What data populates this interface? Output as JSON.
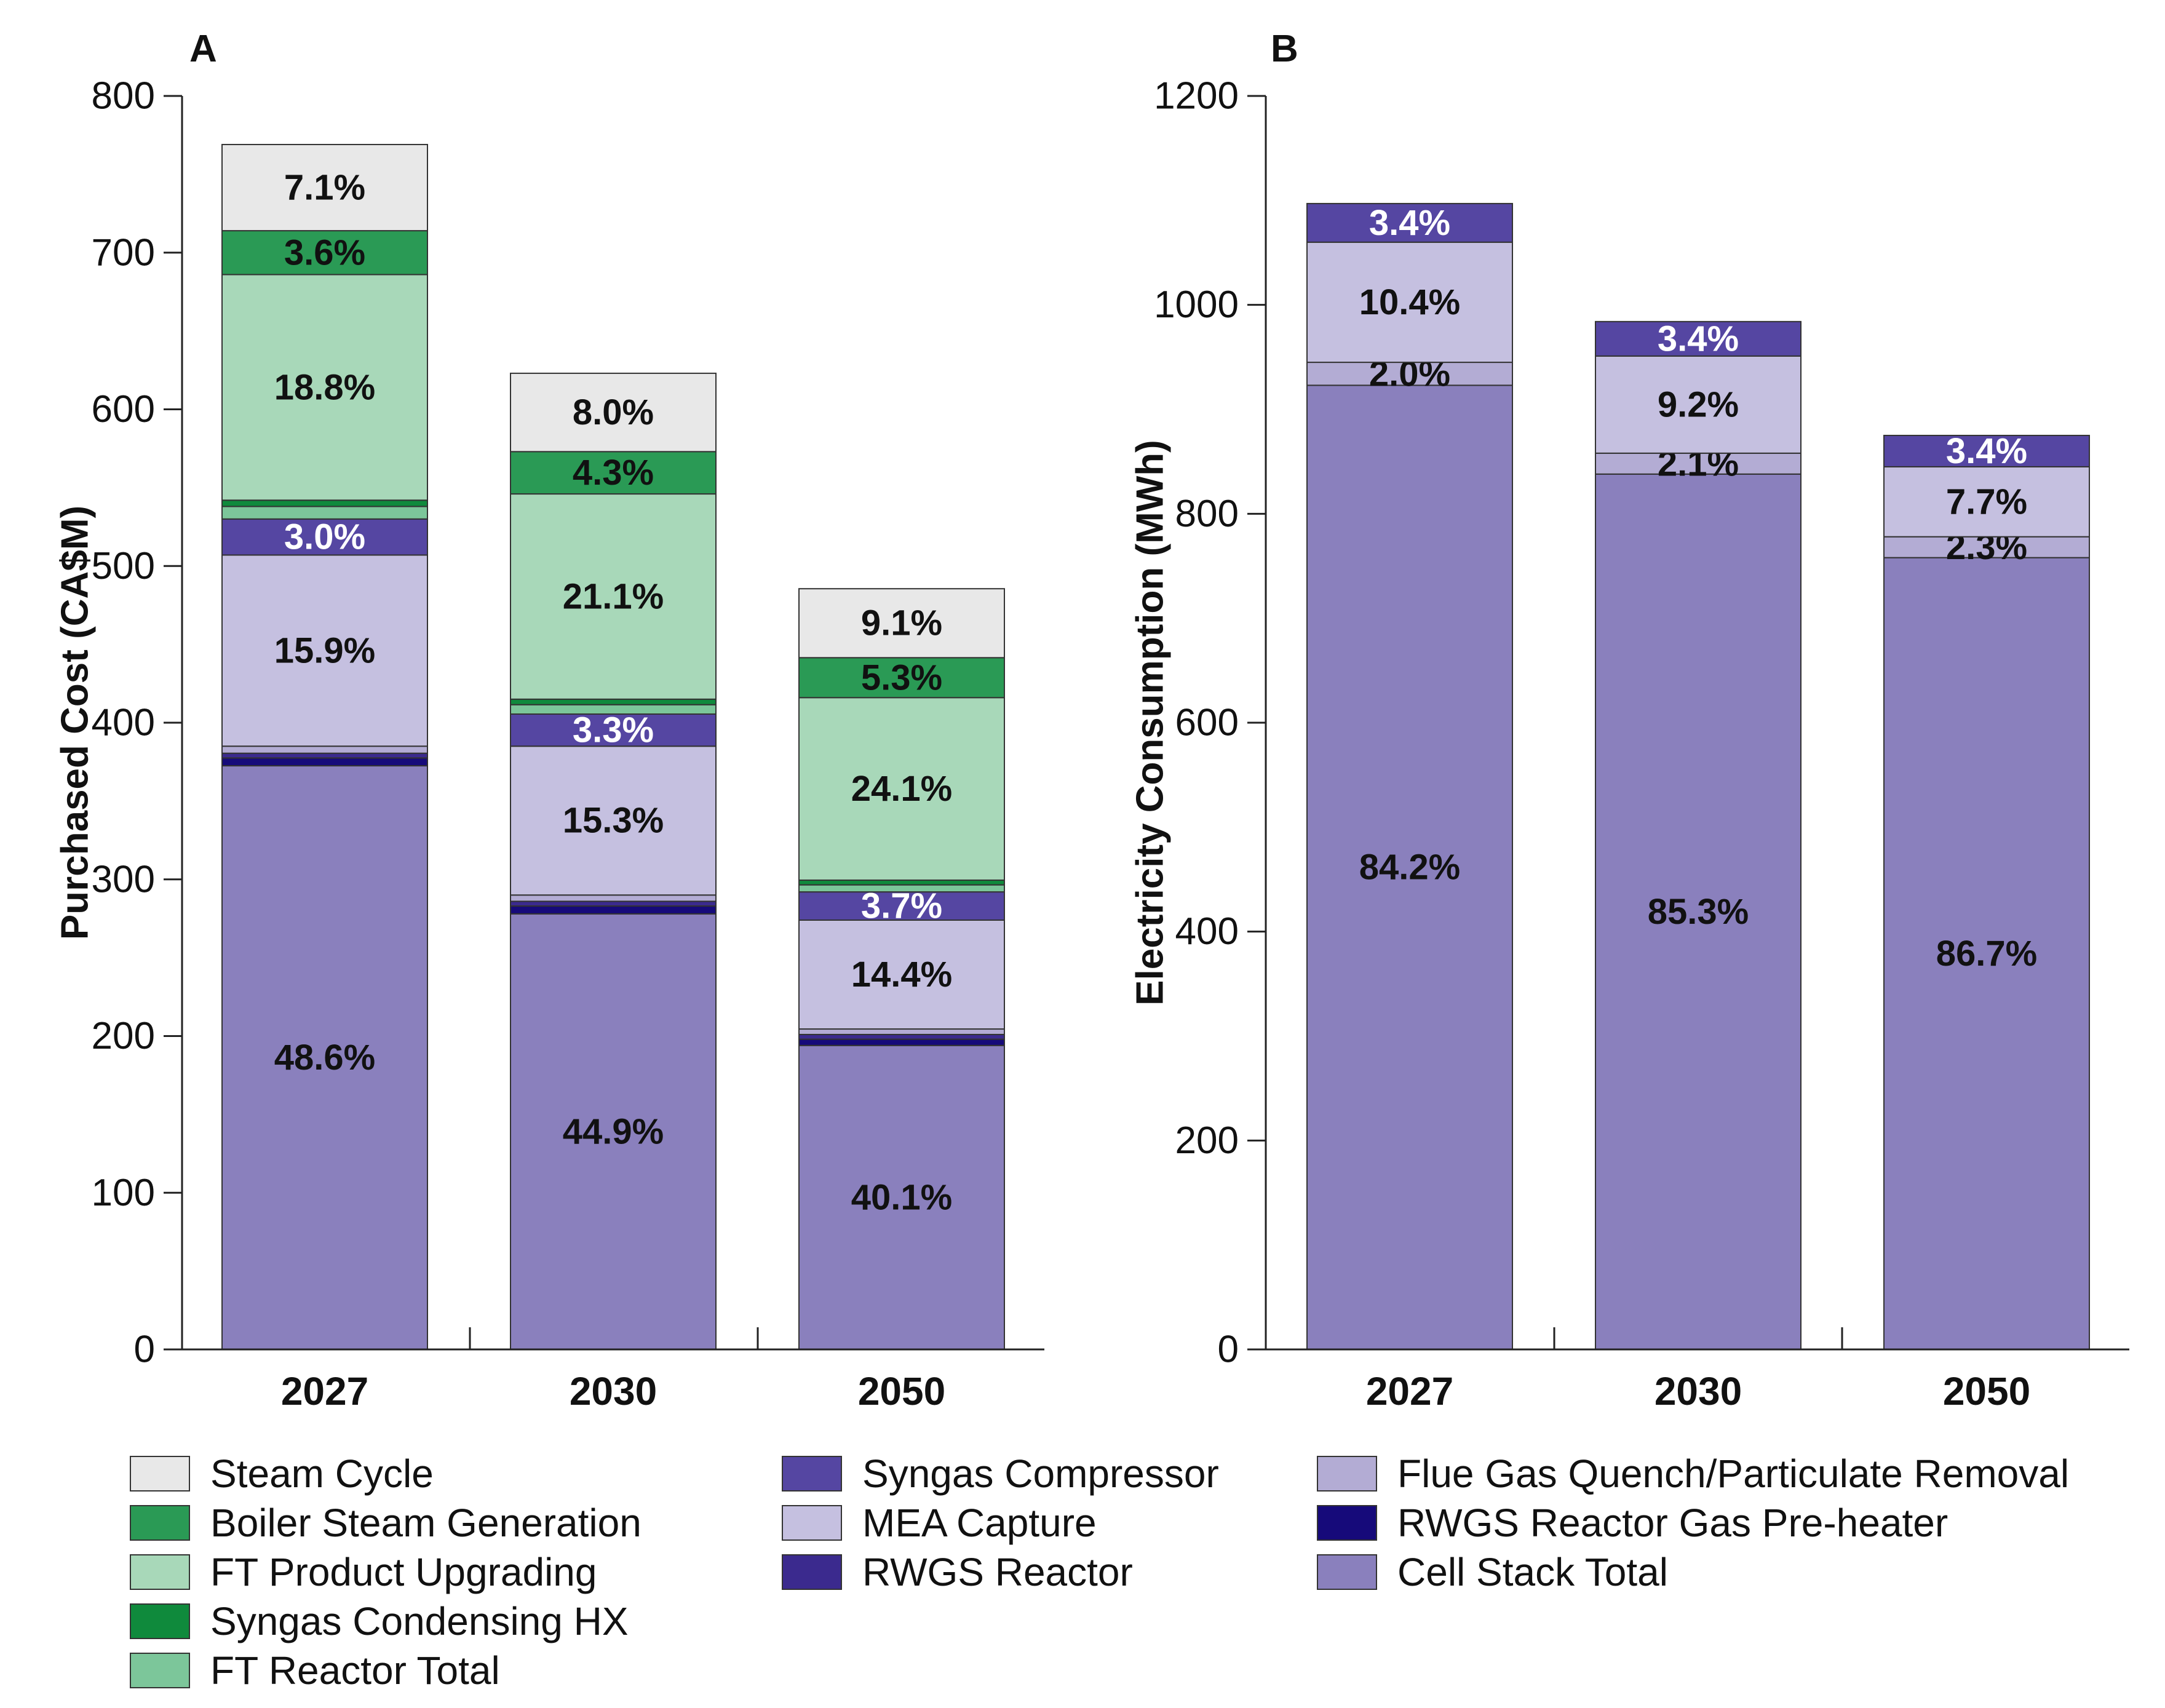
{
  "figure": {
    "panels": [
      "A",
      "B"
    ]
  },
  "legend": [
    {
      "key": "steam_cycle",
      "label": "Steam Cycle",
      "color": "#e8e8e8"
    },
    {
      "key": "boiler_steam_generation",
      "label": "Boiler Steam Generation",
      "color": "#2a9a55"
    },
    {
      "key": "ft_product_upgrading",
      "label": "FT Product Upgrading",
      "color": "#a8d8b9"
    },
    {
      "key": "syngas_condensing_hx",
      "label": "Syngas Condensing HX",
      "color": "#0f8a3c"
    },
    {
      "key": "ft_reactor_total",
      "label": "FT Reactor Total",
      "color": "#7cc69a"
    },
    {
      "key": "syngas_compressor",
      "label": "Syngas Compressor",
      "color": "#5546a2"
    },
    {
      "key": "mea_capture",
      "label": "MEA Capture",
      "color": "#c5c0e0"
    },
    {
      "key": "rwgs_reactor",
      "label": "RWGS Reactor",
      "color": "#3b2a8e"
    },
    {
      "key": "flue_gas_quench",
      "label": "Flue Gas Quench/Particulate Removal",
      "color": "#b3acd4"
    },
    {
      "key": "rwgs_preheater",
      "label": "RWGS Reactor Gas Pre-heater",
      "color": "#160a7a"
    },
    {
      "key": "cell_stack_total",
      "label": "Cell Stack Total",
      "color": "#8a80bd"
    }
  ],
  "chart_data": [
    {
      "panel": "A",
      "type": "bar",
      "stacked": true,
      "ylabel": "Purchased Cost (CA$M)",
      "ylim": [
        0,
        800
      ],
      "yticks": [
        "0",
        "100",
        "200",
        "300",
        "400",
        "500",
        "600",
        "700",
        "800"
      ],
      "categories": [
        "2027",
        "2030",
        "2050"
      ],
      "series": [
        {
          "key": "cell_stack_total",
          "values": [
            372.5,
            278,
            194
          ],
          "labels": [
            "48.6%",
            "44.9%",
            "40.1%"
          ],
          "label_color": "#111111"
        },
        {
          "key": "rwgs_preheater",
          "values": [
            5,
            5,
            4
          ],
          "labels": [
            "",
            "",
            ""
          ]
        },
        {
          "key": "rwgs_reactor",
          "values": [
            3,
            3,
            3
          ],
          "labels": [
            "",
            "",
            ""
          ]
        },
        {
          "key": "flue_gas_quench",
          "values": [
            4.5,
            4,
            3.5
          ],
          "labels": [
            "",
            "",
            ""
          ]
        },
        {
          "key": "mea_capture",
          "values": [
            122,
            95,
            69.5
          ],
          "labels": [
            "15.9%",
            "15.3%",
            "14.4%"
          ],
          "label_color": "#111111"
        },
        {
          "key": "syngas_compressor",
          "values": [
            23,
            20.5,
            18
          ],
          "labels": [
            "3.0%",
            "3.3%",
            "3.7%"
          ],
          "label_color": "#ffffff"
        },
        {
          "key": "ft_reactor_total",
          "values": [
            8,
            6,
            4.5
          ],
          "labels": [
            "",
            "",
            ""
          ]
        },
        {
          "key": "syngas_condensing_hx",
          "values": [
            4,
            3.5,
            3
          ],
          "labels": [
            "",
            "",
            ""
          ]
        },
        {
          "key": "ft_product_upgrading",
          "values": [
            144,
            131,
            116.5
          ],
          "labels": [
            "18.8%",
            "21.1%",
            "24.1%"
          ],
          "label_color": "#111111"
        },
        {
          "key": "boiler_steam_generation",
          "values": [
            28,
            27,
            25.5
          ],
          "labels": [
            "3.6%",
            "4.3%",
            "5.3%"
          ],
          "label_color": "#111111"
        },
        {
          "key": "steam_cycle",
          "values": [
            55,
            50,
            44
          ],
          "labels": [
            "7.1%",
            "8.0%",
            "9.1%"
          ],
          "label_color": "#111111"
        }
      ]
    },
    {
      "panel": "B",
      "type": "bar",
      "stacked": true,
      "ylabel": "Electricity Consumption (MWh)",
      "ylim": [
        0,
        1200
      ],
      "yticks": [
        "0",
        "200",
        "400",
        "600",
        "800",
        "1000",
        "1200"
      ],
      "categories": [
        "2027",
        "2030",
        "2050"
      ],
      "series": [
        {
          "key": "cell_stack_total",
          "values": [
            923,
            838,
            758
          ],
          "labels": [
            "84.2%",
            "85.3%",
            "86.7%"
          ],
          "label_color": "#111111"
        },
        {
          "key": "flue_gas_quench",
          "values": [
            22,
            20,
            20
          ],
          "labels": [
            "2.0%",
            "2.1%",
            "2.3%"
          ],
          "label_color": "#111111"
        },
        {
          "key": "mea_capture",
          "values": [
            115,
            93,
            67
          ],
          "labels": [
            "10.4%",
            "9.2%",
            "7.7%"
          ],
          "label_color": "#111111"
        },
        {
          "key": "syngas_compressor",
          "values": [
            37,
            33,
            30
          ],
          "labels": [
            "3.4%",
            "3.4%",
            "3.4%"
          ],
          "label_color": "#ffffff"
        }
      ]
    }
  ]
}
